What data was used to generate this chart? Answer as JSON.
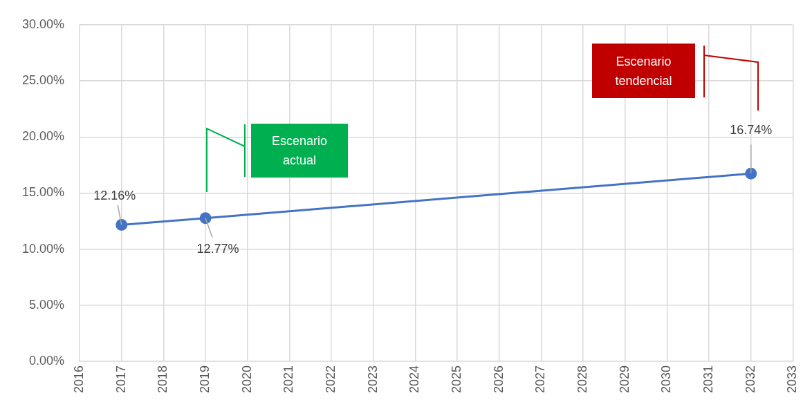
{
  "chart_data": {
    "type": "line",
    "x": [
      2017,
      2019,
      2032
    ],
    "series": [
      {
        "color": "#4472c4",
        "values": [
          12.16,
          12.77,
          16.74
        ],
        "value_labels": [
          "12.16%",
          "12.77%",
          "16.74%"
        ]
      }
    ],
    "xlim": [
      2016,
      2033
    ],
    "xticks": [
      2016,
      2017,
      2018,
      2019,
      2020,
      2021,
      2022,
      2023,
      2024,
      2025,
      2026,
      2027,
      2028,
      2029,
      2030,
      2031,
      2032,
      2033
    ],
    "ylim": [
      0,
      30
    ],
    "yticks": [
      {
        "value": 0,
        "label": "0.00%"
      },
      {
        "value": 5,
        "label": "5.00%"
      },
      {
        "value": 10,
        "label": "10.00%"
      },
      {
        "value": 15,
        "label": "15.00%"
      },
      {
        "value": 20,
        "label": "20.00%"
      },
      {
        "value": 25,
        "label": "25.00%"
      },
      {
        "value": 30,
        "label": "30.00%"
      }
    ],
    "annotations": [
      "Escenario actual",
      "Escenario tendencial"
    ],
    "grid": true,
    "legend": false,
    "marker": "circle",
    "line_style": "solid"
  }
}
